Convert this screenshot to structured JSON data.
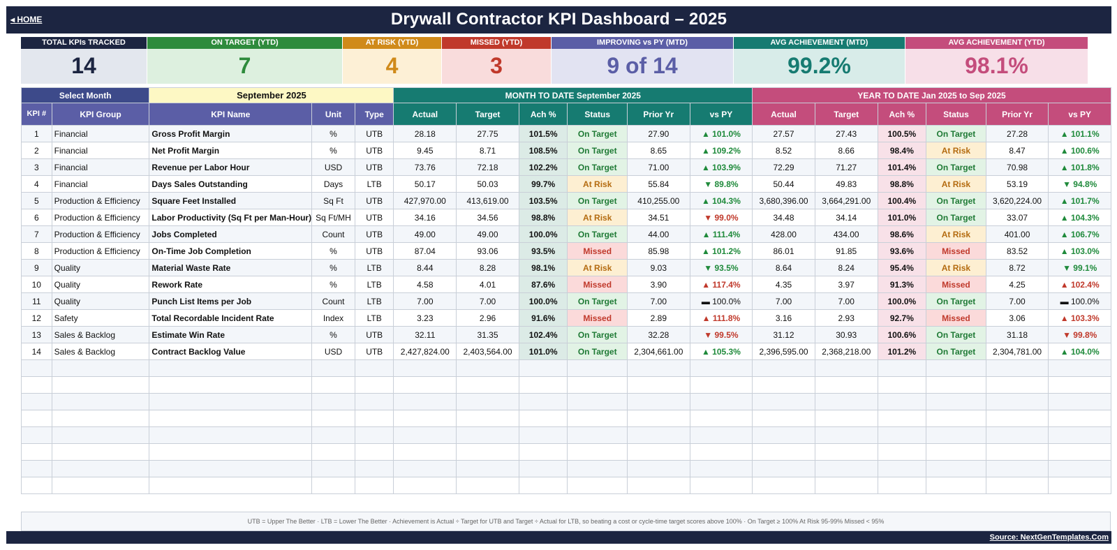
{
  "header": {
    "home_label": "◂ HOME",
    "title": "Drywall Contractor KPI Dashboard   –   2025"
  },
  "kpi_cards": [
    {
      "label": "TOTAL KPIs TRACKED",
      "value": "14",
      "head_color": "#1c2541",
      "bg": "#e3e7ee",
      "fg": "#1c2541"
    },
    {
      "label": "ON TARGET (YTD)",
      "value": "7",
      "head_color": "#2e8b3c",
      "bg": "#ddf0df",
      "fg": "#2e8b3c"
    },
    {
      "label": "AT RISK (YTD)",
      "value": "4",
      "head_color": "#d08a1a",
      "bg": "#fdf0d6",
      "fg": "#d08a1a"
    },
    {
      "label": "MISSED (YTD)",
      "value": "3",
      "head_color": "#c0392b",
      "bg": "#f9dcdc",
      "fg": "#c0392b"
    },
    {
      "label": "IMPROVING vs PY (MTD)",
      "value": "9 of 14",
      "head_color": "#5b5ea6",
      "bg": "#e2e3f2",
      "fg": "#5b5ea6"
    },
    {
      "label": "AVG ACHIEVEMENT (MTD)",
      "value": "99.2%",
      "head_color": "#167b71",
      "bg": "#d8ece9",
      "fg": "#167b71"
    },
    {
      "label": "AVG ACHIEVEMENT (YTD)",
      "value": "98.1%",
      "head_color": "#c44d7c",
      "bg": "#f7dfe8",
      "fg": "#c44d7c"
    }
  ],
  "controls": {
    "select_month_label": "Select Month",
    "selected_month": "September 2025",
    "mtd_header": "MONTH TO DATE     September 2025",
    "ytd_header": "YEAR TO DATE     Jan 2025  to  Sep 2025"
  },
  "columns": {
    "kpi_num": "KPI #",
    "group": "KPI Group",
    "name": "KPI Name",
    "unit": "Unit",
    "type": "Type",
    "mtd": [
      "Actual",
      "Target",
      "Ach %",
      "Status",
      "Prior Yr",
      "vs PY"
    ],
    "ytd": [
      "Actual",
      "Target",
      "Ach %",
      "Status",
      "Prior Yr",
      "vs PY"
    ]
  },
  "rows": [
    {
      "n": "1",
      "group": "Financial",
      "name": "Gross Profit Margin",
      "unit": "%",
      "type": "UTB",
      "mtd": {
        "actual": "28.18",
        "target": "27.75",
        "ach": "101.5%",
        "status": "On Target",
        "prior": "27.90",
        "vspy": "▲ 101.0%",
        "dir": "up"
      },
      "ytd": {
        "actual": "27.57",
        "target": "27.43",
        "ach": "100.5%",
        "status": "On Target",
        "prior": "27.28",
        "vspy": "▲ 101.1%",
        "dir": "up"
      }
    },
    {
      "n": "2",
      "group": "Financial",
      "name": "Net Profit Margin",
      "unit": "%",
      "type": "UTB",
      "mtd": {
        "actual": "9.45",
        "target": "8.71",
        "ach": "108.5%",
        "status": "On Target",
        "prior": "8.65",
        "vspy": "▲ 109.2%",
        "dir": "up"
      },
      "ytd": {
        "actual": "8.52",
        "target": "8.66",
        "ach": "98.4%",
        "status": "At Risk",
        "prior": "8.47",
        "vspy": "▲ 100.6%",
        "dir": "up"
      }
    },
    {
      "n": "3",
      "group": "Financial",
      "name": "Revenue per Labor Hour",
      "unit": "USD",
      "type": "UTB",
      "mtd": {
        "actual": "73.76",
        "target": "72.18",
        "ach": "102.2%",
        "status": "On Target",
        "prior": "71.00",
        "vspy": "▲ 103.9%",
        "dir": "up"
      },
      "ytd": {
        "actual": "72.29",
        "target": "71.27",
        "ach": "101.4%",
        "status": "On Target",
        "prior": "70.98",
        "vspy": "▲ 101.8%",
        "dir": "up"
      }
    },
    {
      "n": "4",
      "group": "Financial",
      "name": "Days Sales Outstanding",
      "unit": "Days",
      "type": "LTB",
      "mtd": {
        "actual": "50.17",
        "target": "50.03",
        "ach": "99.7%",
        "status": "At Risk",
        "prior": "55.84",
        "vspy": "▼ 89.8%",
        "dir": "upgood"
      },
      "ytd": {
        "actual": "50.44",
        "target": "49.83",
        "ach": "98.8%",
        "status": "At Risk",
        "prior": "53.19",
        "vspy": "▼ 94.8%",
        "dir": "upgood"
      }
    },
    {
      "n": "5",
      "group": "Production & Efficiency",
      "name": "Square Feet Installed",
      "unit": "Sq Ft",
      "type": "UTB",
      "mtd": {
        "actual": "427,970.00",
        "target": "413,619.00",
        "ach": "103.5%",
        "status": "On Target",
        "prior": "410,255.00",
        "vspy": "▲ 104.3%",
        "dir": "up"
      },
      "ytd": {
        "actual": "3,680,396.00",
        "target": "3,664,291.00",
        "ach": "100.4%",
        "status": "On Target",
        "prior": "3,620,224.00",
        "vspy": "▲ 101.7%",
        "dir": "up"
      }
    },
    {
      "n": "6",
      "group": "Production & Efficiency",
      "name": "Labor Productivity (Sq Ft per Man-Hour)",
      "unit": "Sq Ft/MH",
      "type": "UTB",
      "mtd": {
        "actual": "34.16",
        "target": "34.56",
        "ach": "98.8%",
        "status": "At Risk",
        "prior": "34.51",
        "vspy": "▼ 99.0%",
        "dir": "dn"
      },
      "ytd": {
        "actual": "34.48",
        "target": "34.14",
        "ach": "101.0%",
        "status": "On Target",
        "prior": "33.07",
        "vspy": "▲ 104.3%",
        "dir": "up"
      }
    },
    {
      "n": "7",
      "group": "Production & Efficiency",
      "name": "Jobs Completed",
      "unit": "Count",
      "type": "UTB",
      "mtd": {
        "actual": "49.00",
        "target": "49.00",
        "ach": "100.0%",
        "status": "On Target",
        "prior": "44.00",
        "vspy": "▲ 111.4%",
        "dir": "up"
      },
      "ytd": {
        "actual": "428.00",
        "target": "434.00",
        "ach": "98.6%",
        "status": "At Risk",
        "prior": "401.00",
        "vspy": "▲ 106.7%",
        "dir": "up"
      }
    },
    {
      "n": "8",
      "group": "Production & Efficiency",
      "name": "On-Time Job Completion",
      "unit": "%",
      "type": "UTB",
      "mtd": {
        "actual": "87.04",
        "target": "93.06",
        "ach": "93.5%",
        "status": "Missed",
        "prior": "85.98",
        "vspy": "▲ 101.2%",
        "dir": "up"
      },
      "ytd": {
        "actual": "86.01",
        "target": "91.85",
        "ach": "93.6%",
        "status": "Missed",
        "prior": "83.52",
        "vspy": "▲ 103.0%",
        "dir": "up"
      }
    },
    {
      "n": "9",
      "group": "Quality",
      "name": "Material Waste Rate",
      "unit": "%",
      "type": "LTB",
      "mtd": {
        "actual": "8.44",
        "target": "8.28",
        "ach": "98.1%",
        "status": "At Risk",
        "prior": "9.03",
        "vspy": "▼ 93.5%",
        "dir": "upgood"
      },
      "ytd": {
        "actual": "8.64",
        "target": "8.24",
        "ach": "95.4%",
        "status": "At Risk",
        "prior": "8.72",
        "vspy": "▼ 99.1%",
        "dir": "upgood"
      }
    },
    {
      "n": "10",
      "group": "Quality",
      "name": "Rework Rate",
      "unit": "%",
      "type": "LTB",
      "mtd": {
        "actual": "4.58",
        "target": "4.01",
        "ach": "87.6%",
        "status": "Missed",
        "prior": "3.90",
        "vspy": "▲ 117.4%",
        "dir": "dn"
      },
      "ytd": {
        "actual": "4.35",
        "target": "3.97",
        "ach": "91.3%",
        "status": "Missed",
        "prior": "4.25",
        "vspy": "▲ 102.4%",
        "dir": "dn"
      }
    },
    {
      "n": "11",
      "group": "Quality",
      "name": "Punch List Items per Job",
      "unit": "Count",
      "type": "LTB",
      "mtd": {
        "actual": "7.00",
        "target": "7.00",
        "ach": "100.0%",
        "status": "On Target",
        "prior": "7.00",
        "vspy": "▬ 100.0%",
        "dir": "eq"
      },
      "ytd": {
        "actual": "7.00",
        "target": "7.00",
        "ach": "100.0%",
        "status": "On Target",
        "prior": "7.00",
        "vspy": "▬ 100.0%",
        "dir": "eq"
      }
    },
    {
      "n": "12",
      "group": "Safety",
      "name": "Total Recordable Incident Rate",
      "unit": "Index",
      "type": "LTB",
      "mtd": {
        "actual": "3.23",
        "target": "2.96",
        "ach": "91.6%",
        "status": "Missed",
        "prior": "2.89",
        "vspy": "▲ 111.8%",
        "dir": "dn"
      },
      "ytd": {
        "actual": "3.16",
        "target": "2.93",
        "ach": "92.7%",
        "status": "Missed",
        "prior": "3.06",
        "vspy": "▲ 103.3%",
        "dir": "dn"
      }
    },
    {
      "n": "13",
      "group": "Sales & Backlog",
      "name": "Estimate Win Rate",
      "unit": "%",
      "type": "UTB",
      "mtd": {
        "actual": "32.11",
        "target": "31.35",
        "ach": "102.4%",
        "status": "On Target",
        "prior": "32.28",
        "vspy": "▼ 99.5%",
        "dir": "dn"
      },
      "ytd": {
        "actual": "31.12",
        "target": "30.93",
        "ach": "100.6%",
        "status": "On Target",
        "prior": "31.18",
        "vspy": "▼ 99.8%",
        "dir": "dn"
      }
    },
    {
      "n": "14",
      "group": "Sales & Backlog",
      "name": "Contract Backlog Value",
      "unit": "USD",
      "type": "UTB",
      "mtd": {
        "actual": "2,427,824.00",
        "target": "2,403,564.00",
        "ach": "101.0%",
        "status": "On Target",
        "prior": "2,304,661.00",
        "vspy": "▲ 105.3%",
        "dir": "up"
      },
      "ytd": {
        "actual": "2,396,595.00",
        "target": "2,368,218.00",
        "ach": "101.2%",
        "status": "On Target",
        "prior": "2,304,781.00",
        "vspy": "▲ 104.0%",
        "dir": "up"
      }
    }
  ],
  "empty_rows": 8,
  "footnote": "UTB = Upper The Better    ·    LTB = Lower The Better    ·    Achievement is Actual ÷ Target for UTB and Target ÷ Actual for LTB, so beating a cost or cycle-time target scores above 100%    ·    On Target ≥ 100%     At Risk 95-99%     Missed < 95%",
  "source": "Source: NextGenTemplates.Com",
  "colors": {
    "navy": "#1c2541",
    "select_month_head": "#3d4a8a",
    "selected_month_bg": "#fdf8c4",
    "col_head_purple": "#5b5ea6",
    "mtd_teal": "#167b71",
    "ytd_pink": "#c44d7c"
  }
}
